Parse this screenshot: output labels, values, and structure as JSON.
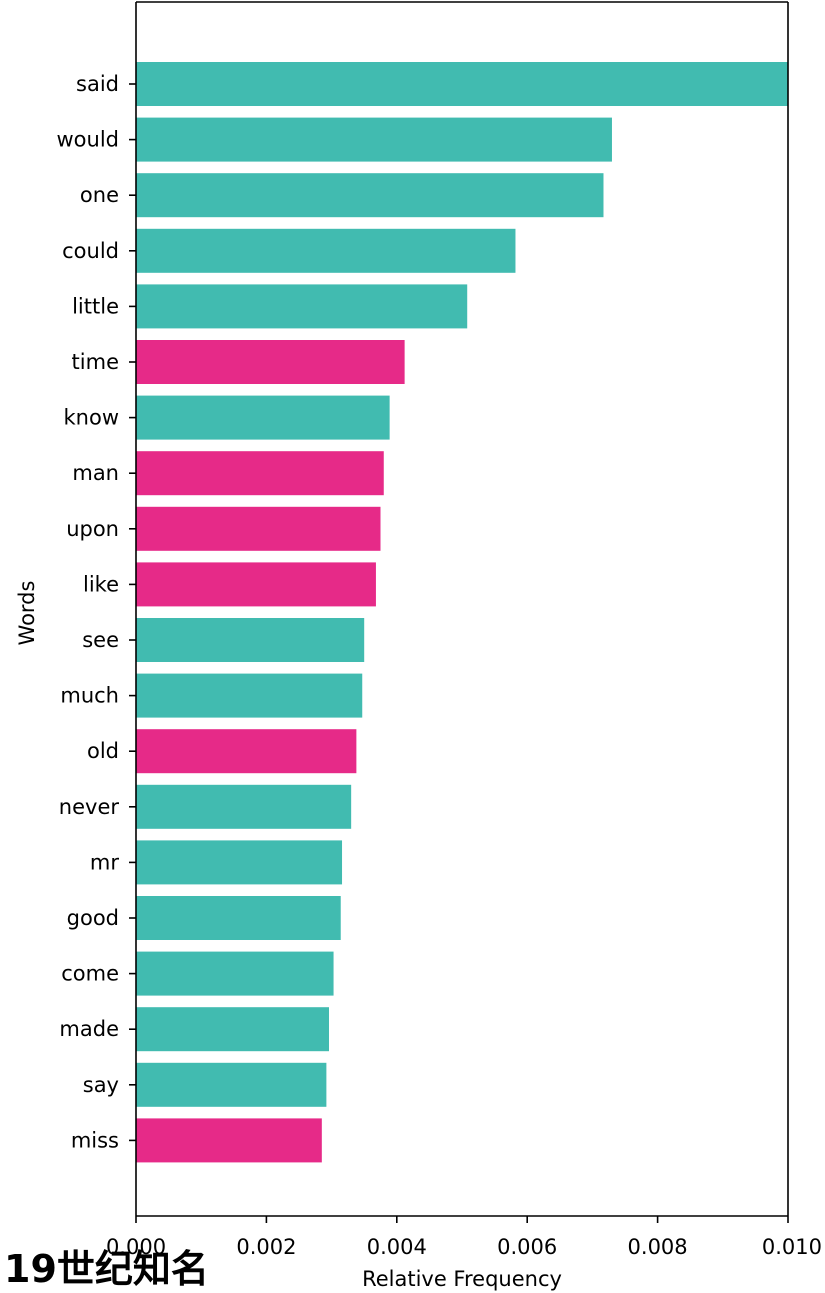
{
  "caption_text": "19世纪知名",
  "colors": {
    "teal": "#41bbb0",
    "pink": "#e62a88"
  },
  "chart_data": {
    "type": "bar",
    "orientation": "horizontal",
    "title": "",
    "xlabel": "Relative Frequency",
    "ylabel": "Words",
    "xlim": [
      0.0,
      0.01
    ],
    "xticks": [
      "0.000",
      "0.002",
      "0.004",
      "0.006",
      "0.008",
      "0.010"
    ],
    "grid": false,
    "categories": [
      "said",
      "would",
      "one",
      "could",
      "little",
      "time",
      "know",
      "man",
      "upon",
      "like",
      "see",
      "much",
      "old",
      "never",
      "mr",
      "good",
      "come",
      "made",
      "say",
      "miss"
    ],
    "values": [
      0.0102,
      0.0073,
      0.00717,
      0.00582,
      0.00508,
      0.00412,
      0.00389,
      0.0038,
      0.00375,
      0.00368,
      0.0035,
      0.00347,
      0.00338,
      0.0033,
      0.00316,
      0.00314,
      0.00303,
      0.00296,
      0.00292,
      0.00285
    ],
    "bar_colors": [
      "teal",
      "teal",
      "teal",
      "teal",
      "teal",
      "pink",
      "teal",
      "pink",
      "pink",
      "pink",
      "teal",
      "teal",
      "pink",
      "teal",
      "teal",
      "teal",
      "teal",
      "teal",
      "teal",
      "pink"
    ]
  }
}
